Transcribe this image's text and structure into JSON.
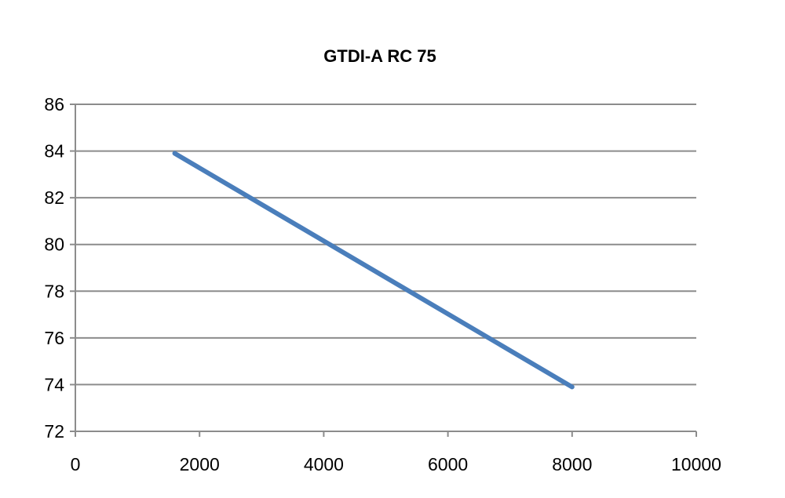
{
  "chart_data": {
    "type": "line",
    "title": "GTDI-A RC 75",
    "xlabel": "",
    "ylabel": "",
    "xlim": [
      0,
      10000
    ],
    "ylim": [
      72,
      86
    ],
    "x_ticks": [
      0,
      2000,
      4000,
      6000,
      8000,
      10000
    ],
    "y_ticks": [
      72,
      74,
      76,
      78,
      80,
      82,
      84,
      86
    ],
    "grid": {
      "horizontal": true,
      "vertical": false
    },
    "legend": "none",
    "series": [
      {
        "color": "#4a7ebb",
        "x": [
          1600,
          8000
        ],
        "y": [
          83.9,
          73.9
        ]
      }
    ]
  }
}
